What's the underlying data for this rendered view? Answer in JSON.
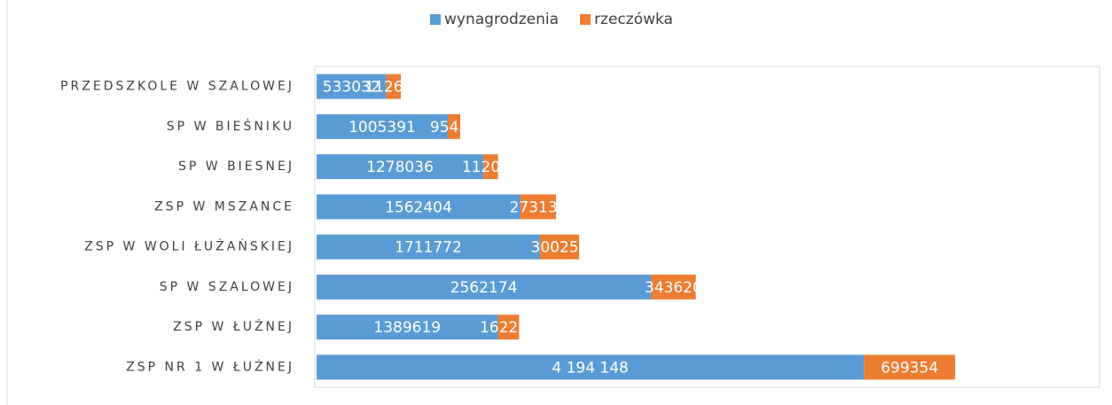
{
  "chart_data": {
    "type": "bar",
    "orientation": "horizontal",
    "stacked": true,
    "categories": [
      "PRZEDSZKOLE W SZALOWEJ",
      "SP W BIEŚNIKU",
      "SP W BIESNEJ",
      "ZSP W MSZANCE",
      "ZSP W WOLI ŁUŻAŃSKIEJ",
      "SP W SZALOWEJ",
      "ZSP W ŁUŻNEJ",
      "ZSP NR 1 W ŁUŻNEJ"
    ],
    "series": [
      {
        "name": "wynagrodzenia",
        "color": "#5b9bd5",
        "values": [
          533032,
          1005391,
          1278036,
          1562404,
          1711772,
          2562174,
          1389619,
          4194148
        ],
        "value_labels": [
          "533032",
          "1005391",
          "1278036",
          "1562404",
          "1711772",
          "2562174",
          "1389619",
          "4 194 148"
        ]
      },
      {
        "name": "rzeczówka",
        "color": "#ed7d31",
        "values": [
          112630,
          95434,
          112034,
          273134,
          300253,
          343620,
          162200,
          699354
        ]
      }
    ],
    "xlim": [
      0,
      6000000
    ],
    "legend": "top"
  }
}
